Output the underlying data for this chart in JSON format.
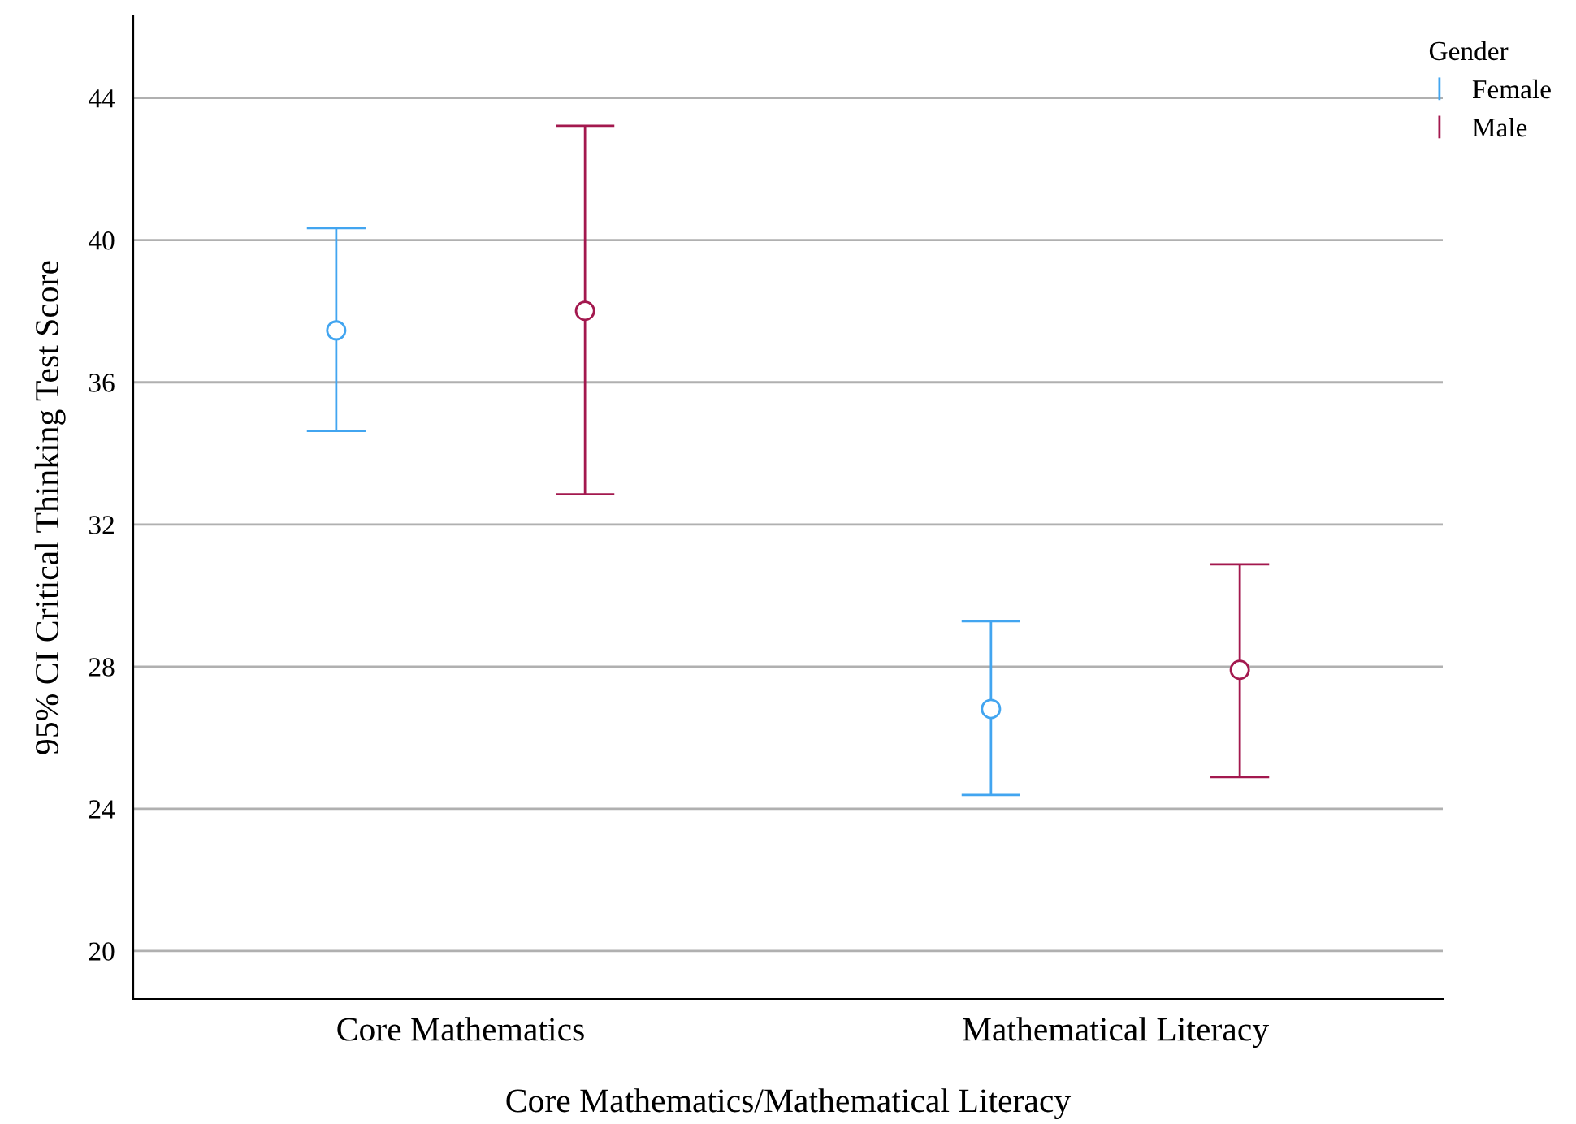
{
  "chart_data": {
    "type": "scatter",
    "xlabel": "Core Mathematics/Mathematical Literacy",
    "ylabel": "95% CI Critical Thinking Test Score",
    "legend_title": "Gender",
    "categories": [
      "Core Mathematics",
      "Mathematical Literacy"
    ],
    "series": [
      {
        "name": "Female",
        "color": "#42a5f0",
        "values": [
          37.46,
          26.81
        ],
        "errors": [
          [
            34.63,
            40.34
          ],
          [
            24.39,
            29.28
          ]
        ]
      },
      {
        "name": "Male",
        "color": "#a3184e",
        "values": [
          38.01,
          27.91
        ],
        "errors": [
          [
            32.85,
            43.22
          ],
          [
            24.89,
            30.88
          ]
        ]
      }
    ],
    "ylim": [
      18.65,
      46.3
    ],
    "yticks": [
      20,
      24,
      28,
      32,
      36,
      40,
      44
    ],
    "grid": "y",
    "legend": "top right",
    "marker": "circle"
  }
}
